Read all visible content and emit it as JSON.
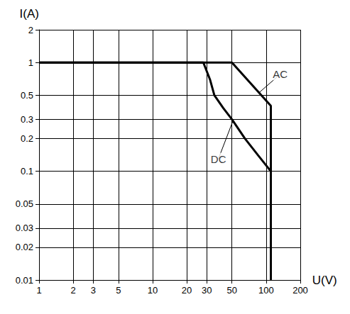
{
  "chart_data": {
    "type": "line",
    "x_label": "U(V)",
    "y_label": "I(A)",
    "log": true,
    "grid": true,
    "xlim": [
      1,
      200
    ],
    "ylim": [
      0.01,
      2
    ],
    "xticks": [
      1,
      2,
      3,
      5,
      10,
      20,
      30,
      50,
      100,
      200
    ],
    "yticks": [
      0.01,
      0.02,
      0.03,
      0.05,
      0.1,
      0.2,
      0.3,
      0.5,
      1,
      2
    ],
    "series": [
      {
        "name": "AC",
        "color": "#000000",
        "line_style": "solid",
        "x": [
          1,
          50,
          110,
          110
        ],
        "values": [
          1,
          1,
          0.4,
          0.01
        ]
      },
      {
        "name": "DC",
        "color": "#000000",
        "line_style": "solid",
        "x": [
          1,
          28,
          32,
          35,
          42,
          50,
          65,
          85,
          110,
          110
        ],
        "values": [
          1,
          1,
          0.7,
          0.5,
          0.38,
          0.3,
          0.2,
          0.14,
          0.1,
          0.01
        ]
      }
    ],
    "annotations": [
      {
        "text": "AC",
        "x": 133,
        "y": 0.78,
        "point": [
          87,
          0.53
        ]
      },
      {
        "text": "DC",
        "x": 38,
        "y": 0.13,
        "point": [
          51,
          0.29
        ]
      }
    ]
  }
}
